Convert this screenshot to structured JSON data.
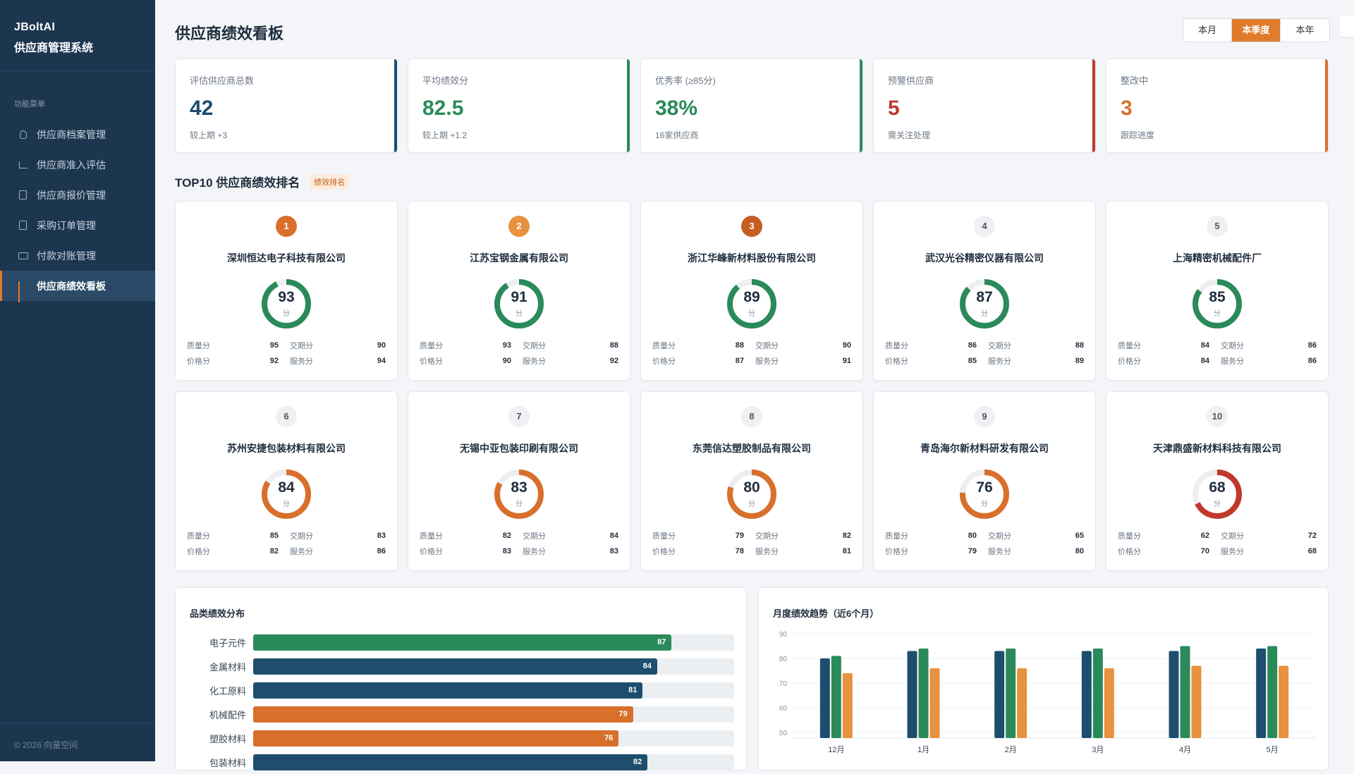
{
  "sidebar": {
    "brand_line1": "JBoltAI",
    "brand_line2": "供应商管理系统",
    "menu_title": "功能菜单",
    "items": [
      {
        "label": "供应商档案管理",
        "icon": "user-icon"
      },
      {
        "label": "供应商准入评估",
        "icon": "checklist-icon"
      },
      {
        "label": "供应商报价管理",
        "icon": "quote-doc-icon"
      },
      {
        "label": "采购订单管理",
        "icon": "order-doc-icon"
      },
      {
        "label": "付款对账管理",
        "icon": "payment-card-icon"
      },
      {
        "label": "供应商绩效看板",
        "icon": "bar-chart-icon"
      }
    ],
    "footer": "© 2026 向量空间"
  },
  "header": {
    "title": "供应商绩效看板",
    "periods": [
      "本月",
      "本季度",
      "本年"
    ],
    "active_period": "本季度"
  },
  "kpis": [
    {
      "label": "评估供应商总数",
      "value": "42",
      "sub": "较上期 +3",
      "color": "#1d4e6e"
    },
    {
      "label": "平均绩效分",
      "value": "82.5",
      "sub": "较上期 +1.2",
      "color": "#2a8a5a"
    },
    {
      "label": "优秀率 (≥85分)",
      "value": "38%",
      "sub": "16家供应商",
      "color": "#2a8a5a"
    },
    {
      "label": "预警供应商",
      "value": "5",
      "sub": "需关注处理",
      "color": "#c0392b"
    },
    {
      "label": "整改中",
      "value": "3",
      "sub": "跟踪进度",
      "color": "#d8702c"
    }
  ],
  "ranking": {
    "title": "TOP10 供应商绩效排名",
    "tag": "绩效排名",
    "unit": "分",
    "metric_labels": {
      "quality": "质量分",
      "delivery": "交期分",
      "price": "价格分",
      "service": "服务分"
    },
    "suppliers": [
      {
        "rank": "1",
        "name": "深圳恒达电子科技有限公司",
        "score": "93",
        "quality": "95",
        "delivery": "90",
        "price": "92",
        "service": "94",
        "color": "#2a8a5a"
      },
      {
        "rank": "2",
        "name": "江苏宝钢金属有限公司",
        "score": "91",
        "quality": "93",
        "delivery": "88",
        "price": "90",
        "service": "92",
        "color": "#2a8a5a"
      },
      {
        "rank": "3",
        "name": "浙江华峰新材料股份有限公司",
        "score": "89",
        "quality": "88",
        "delivery": "90",
        "price": "87",
        "service": "91",
        "color": "#2a8a5a"
      },
      {
        "rank": "4",
        "name": "武汉光谷精密仪器有限公司",
        "score": "87",
        "quality": "86",
        "delivery": "88",
        "price": "85",
        "service": "89",
        "color": "#2a8a5a"
      },
      {
        "rank": "5",
        "name": "上海精密机械配件厂",
        "score": "85",
        "quality": "84",
        "delivery": "86",
        "price": "84",
        "service": "86",
        "color": "#2a8a5a"
      },
      {
        "rank": "6",
        "name": "苏州安捷包装材料有限公司",
        "score": "84",
        "quality": "85",
        "delivery": "83",
        "price": "82",
        "service": "86",
        "color": "#d8702c"
      },
      {
        "rank": "7",
        "name": "无锡中亚包装印刷有限公司",
        "score": "83",
        "quality": "82",
        "delivery": "84",
        "price": "83",
        "service": "83",
        "color": "#d8702c"
      },
      {
        "rank": "8",
        "name": "东莞信达塑胶制品有限公司",
        "score": "80",
        "quality": "79",
        "delivery": "82",
        "price": "78",
        "service": "81",
        "color": "#d8702c"
      },
      {
        "rank": "9",
        "name": "青岛海尔新材料研发有限公司",
        "score": "76",
        "quality": "80",
        "delivery": "65",
        "price": "79",
        "service": "80",
        "color": "#d8702c"
      },
      {
        "rank": "10",
        "name": "天津鼎盛新材料科技有限公司",
        "score": "68",
        "quality": "62",
        "delivery": "72",
        "price": "70",
        "service": "68",
        "color": "#c0392b"
      }
    ]
  },
  "category_panel": {
    "title": "品类绩效分布",
    "max": 100,
    "rows": [
      {
        "label": "电子元件",
        "value": 87,
        "color": "#2a8a5a"
      },
      {
        "label": "金属材料",
        "value": 84,
        "color": "#1d4e6e"
      },
      {
        "label": "化工原料",
        "value": 81,
        "color": "#1d4e6e"
      },
      {
        "label": "机械配件",
        "value": 79,
        "color": "#d8702c"
      },
      {
        "label": "塑胶材料",
        "value": 76,
        "color": "#d8702c"
      },
      {
        "label": "包装材料",
        "value": 82,
        "color": "#1d4e6e"
      }
    ]
  },
  "trend_panel": {
    "title": "月度绩效趋势（近6个月）",
    "chart_data": {
      "type": "bar",
      "categories": [
        "12月",
        "1月",
        "2月",
        "3月",
        "4月",
        "5月"
      ],
      "ylim": [
        50,
        90
      ],
      "yticks": [
        50,
        60,
        70,
        80,
        90
      ],
      "grid": true,
      "series": [
        {
          "values": [
            80,
            83,
            83,
            83,
            83,
            84
          ],
          "color": "#1d4e6e"
        },
        {
          "values": [
            81,
            84,
            84,
            84,
            85,
            85
          ],
          "color": "#2a8a5a"
        },
        {
          "values": [
            74,
            76,
            76,
            76,
            77,
            77
          ],
          "color": "#e8913e"
        }
      ]
    }
  }
}
